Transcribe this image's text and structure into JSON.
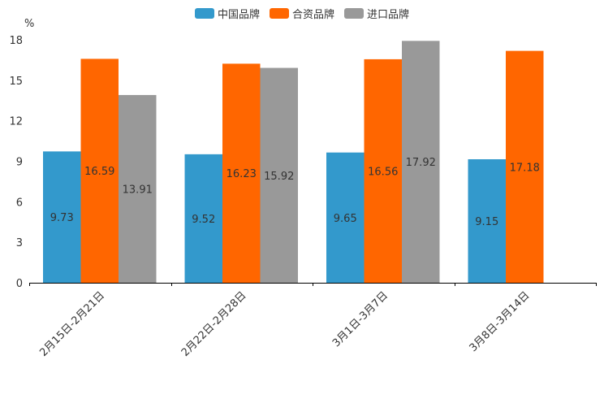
{
  "chart_data": {
    "type": "bar",
    "unit": "%",
    "categories": [
      "2月15日-2月21日",
      "2月22日-2月28日",
      "3月1日-3月7日",
      "3月8日-3月14日"
    ],
    "series": [
      {
        "name": "中国品牌",
        "color": "#3399cc",
        "values": [
          9.73,
          9.52,
          9.65,
          9.15
        ]
      },
      {
        "name": "合资品牌",
        "color": "#ff6600",
        "values": [
          16.59,
          16.23,
          16.56,
          17.18
        ]
      },
      {
        "name": "进口品牌",
        "color": "#999999",
        "values": [
          13.91,
          15.92,
          17.92,
          null
        ]
      }
    ],
    "ylim": [
      0,
      18
    ],
    "yticks": [
      0,
      3,
      6,
      9,
      12,
      15,
      18
    ],
    "legend_position": "top-center",
    "grid": false
  }
}
